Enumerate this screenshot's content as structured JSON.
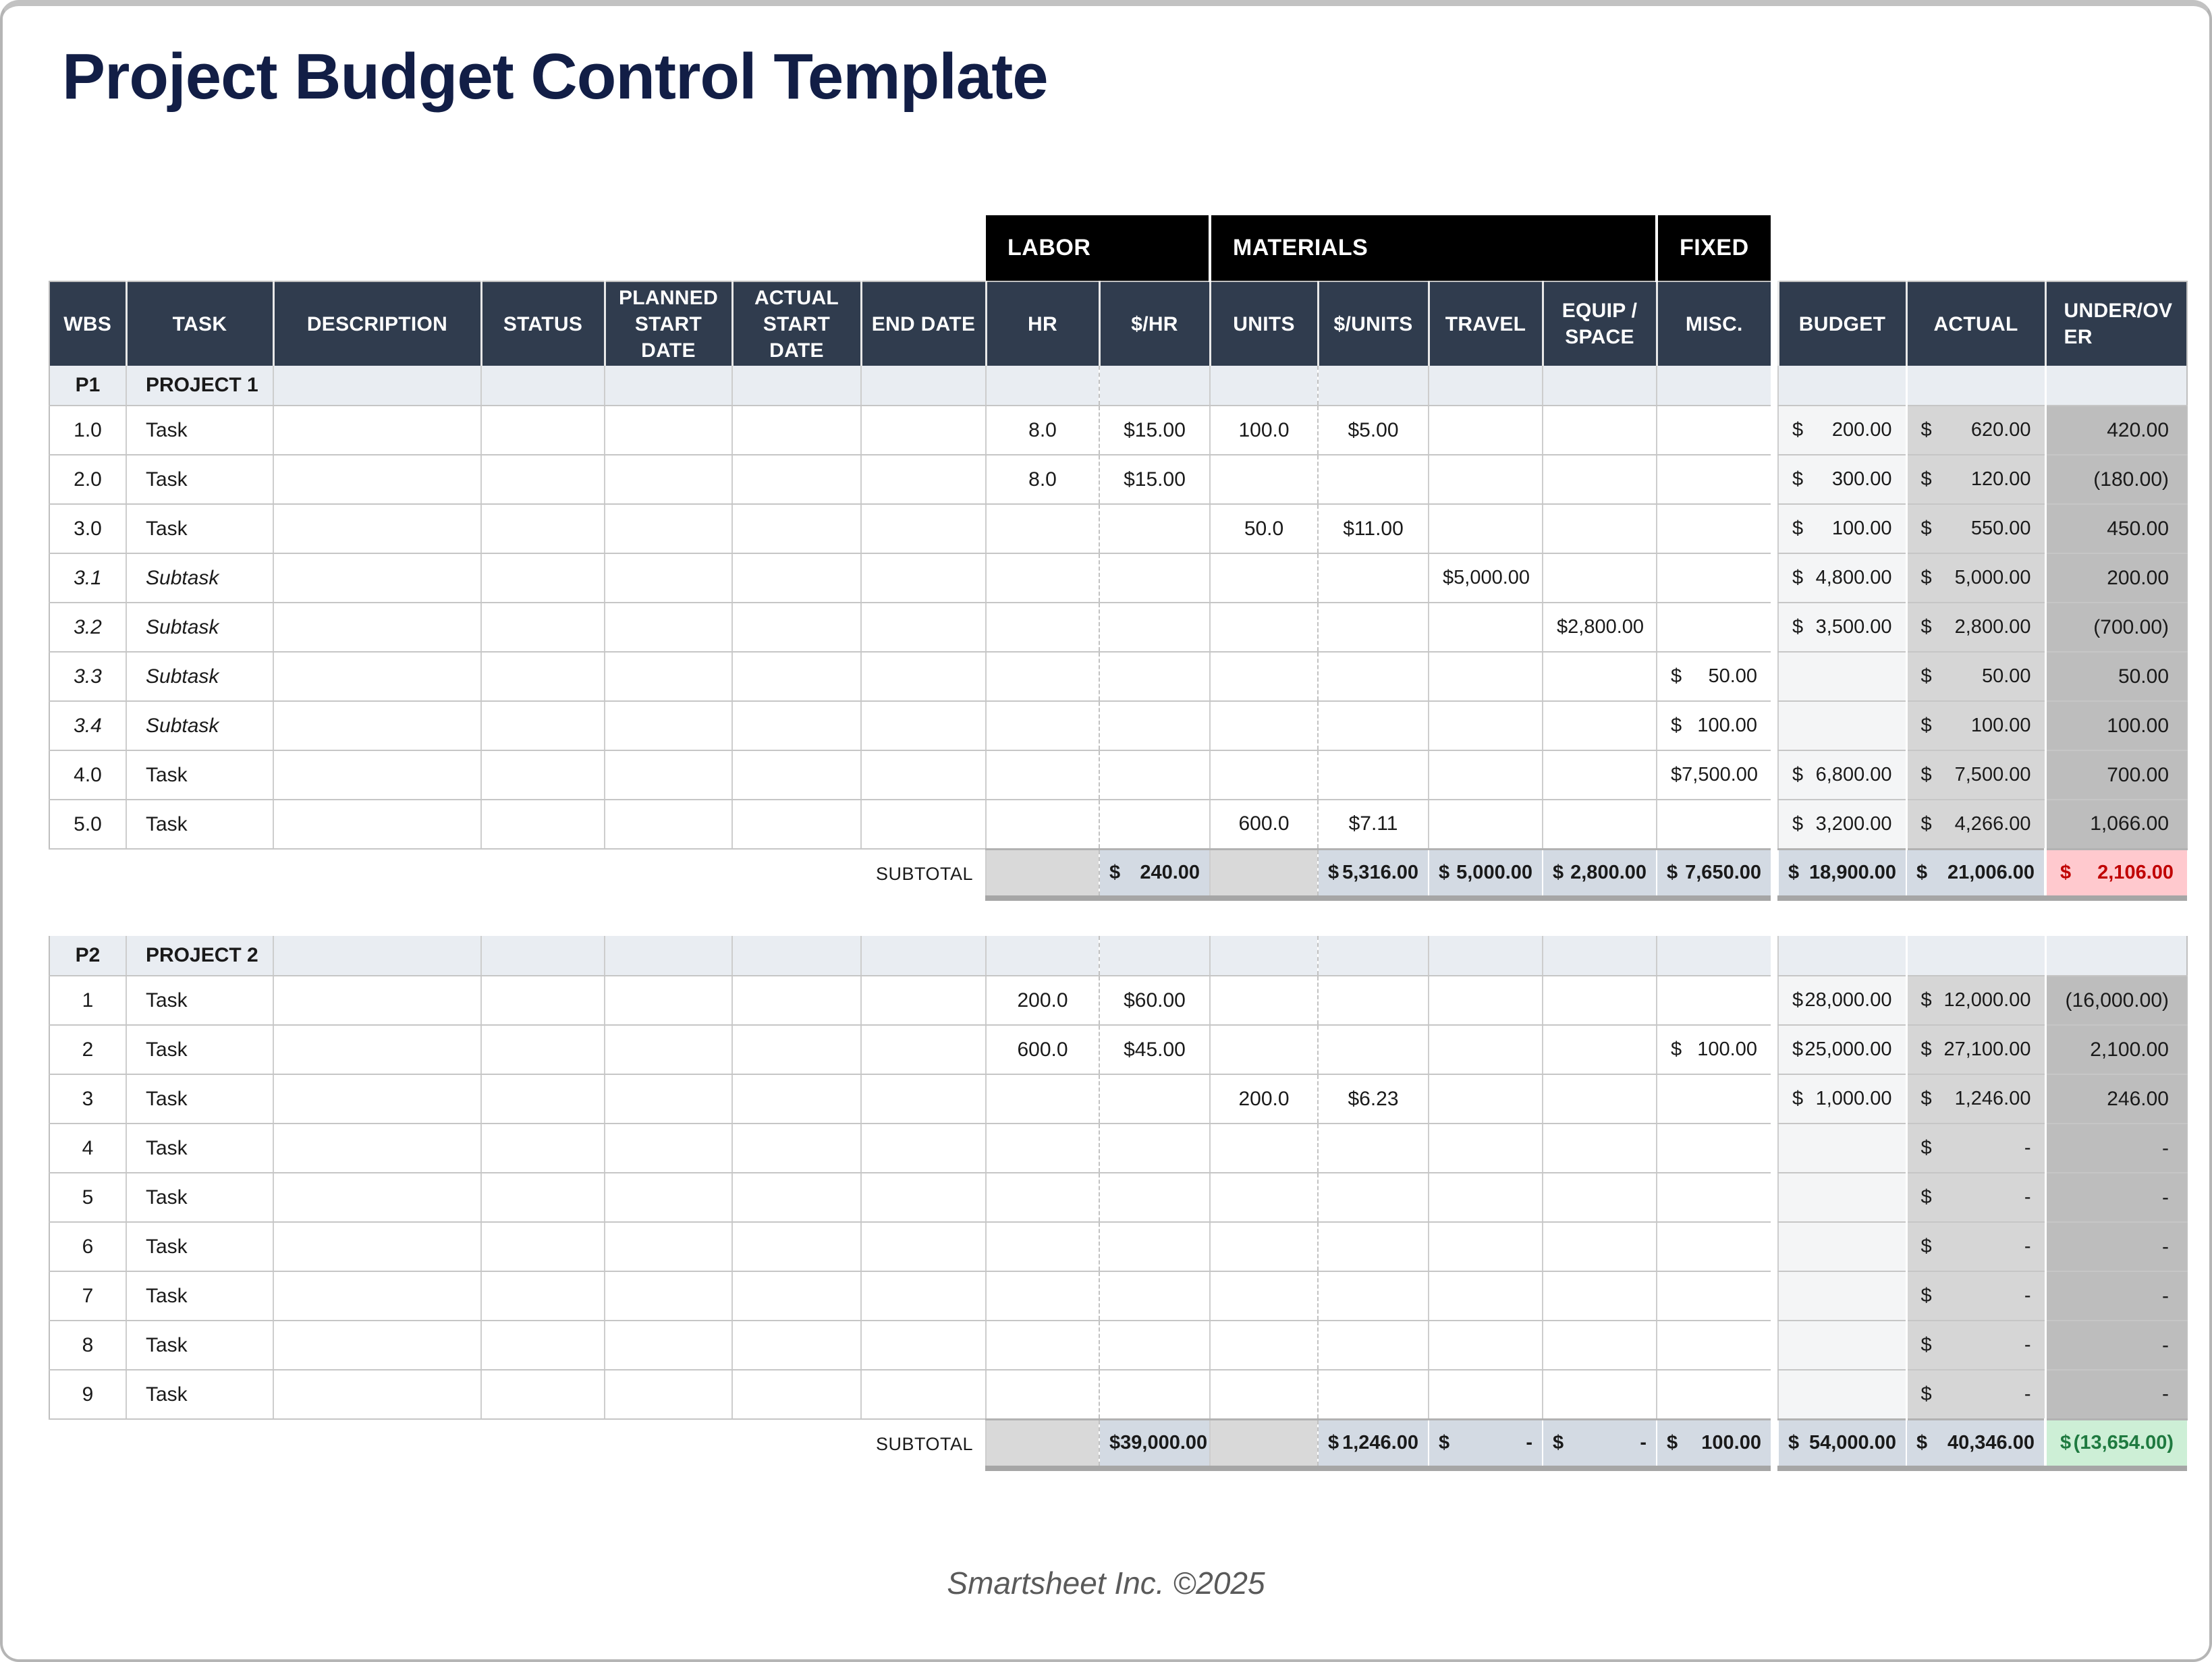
{
  "title": "Project Budget Control Template",
  "footer": "Smartsheet Inc. ©2025",
  "currency": "$",
  "colors": {
    "title_navy": "#121E46",
    "header_navy": "#303C4E",
    "group_black": "#000000",
    "project_row": "#E9EDF2",
    "subtotal_blue": "#D3DAE3",
    "subtotal_gray": "#D9D9D9",
    "budget_col": "#F4F5F6",
    "actual_col": "#D6D6D6",
    "variance_col": "#BDBDBD",
    "over_bg": "#FFC9CE",
    "over_text": "#C00000",
    "under_bg": "#CDEFD6",
    "under_text": "#1F7A40"
  },
  "table": {
    "group_headers": [
      {
        "label": "LABOR",
        "span": 2
      },
      {
        "label": "MATERIALS",
        "span": 4
      },
      {
        "label": "FIXED",
        "span": 1
      }
    ],
    "columns": [
      "WBS",
      "TASK",
      "DESCRIPTION",
      "STATUS",
      "PLANNED START DATE",
      "ACTUAL START DATE",
      "END DATE",
      "HR",
      "$/HR",
      "UNITS",
      "$/UNITS",
      "TRAVEL",
      "EQUIP / SPACE",
      "MISC.",
      "BUDGET",
      "ACTUAL",
      "UNDER/OVER"
    ],
    "subtotal_label": "SUBTOTAL",
    "projects": [
      {
        "id": "P1",
        "name": "PROJECT 1",
        "rows": [
          {
            "wbs": "1.0",
            "task": "Task",
            "sub": false,
            "hr": "8.0",
            "rate": "$15.00",
            "units": "100.0",
            "unit_cost": "$5.00",
            "travel": "",
            "equip": "",
            "misc": "",
            "budget": "200.00",
            "actual": "620.00",
            "variance": "420.00"
          },
          {
            "wbs": "2.0",
            "task": "Task",
            "sub": false,
            "hr": "8.0",
            "rate": "$15.00",
            "units": "",
            "unit_cost": "",
            "travel": "",
            "equip": "",
            "misc": "",
            "budget": "300.00",
            "actual": "120.00",
            "variance": "(180.00)"
          },
          {
            "wbs": "3.0",
            "task": "Task",
            "sub": false,
            "hr": "",
            "rate": "",
            "units": "50.0",
            "unit_cost": "$11.00",
            "travel": "",
            "equip": "",
            "misc": "",
            "budget": "100.00",
            "actual": "550.00",
            "variance": "450.00"
          },
          {
            "wbs": "3.1",
            "task": "Subtask",
            "sub": true,
            "hr": "",
            "rate": "",
            "units": "",
            "unit_cost": "",
            "travel": "5,000.00",
            "equip": "",
            "misc": "",
            "budget": "4,800.00",
            "actual": "5,000.00",
            "variance": "200.00"
          },
          {
            "wbs": "3.2",
            "task": "Subtask",
            "sub": true,
            "hr": "",
            "rate": "",
            "units": "",
            "unit_cost": "",
            "travel": "",
            "equip": "2,800.00",
            "misc": "",
            "budget": "3,500.00",
            "actual": "2,800.00",
            "variance": "(700.00)"
          },
          {
            "wbs": "3.3",
            "task": "Subtask",
            "sub": true,
            "hr": "",
            "rate": "",
            "units": "",
            "unit_cost": "",
            "travel": "",
            "equip": "",
            "misc": "50.00",
            "budget": "",
            "actual": "50.00",
            "variance": "50.00"
          },
          {
            "wbs": "3.4",
            "task": "Subtask",
            "sub": true,
            "hr": "",
            "rate": "",
            "units": "",
            "unit_cost": "",
            "travel": "",
            "equip": "",
            "misc": "100.00",
            "budget": "",
            "actual": "100.00",
            "variance": "100.00"
          },
          {
            "wbs": "4.0",
            "task": "Task",
            "sub": false,
            "hr": "",
            "rate": "",
            "units": "",
            "unit_cost": "",
            "travel": "",
            "equip": "",
            "misc": "7,500.00",
            "budget": "6,800.00",
            "actual": "7,500.00",
            "variance": "700.00"
          },
          {
            "wbs": "5.0",
            "task": "Task",
            "sub": false,
            "hr": "",
            "rate": "",
            "units": "600.0",
            "unit_cost": "$7.11",
            "travel": "",
            "equip": "",
            "misc": "",
            "budget": "3,200.00",
            "actual": "4,266.00",
            "variance": "1,066.00"
          }
        ],
        "subtotal": {
          "rate": "240.00",
          "unit_cost": "5,316.00",
          "travel": "5,000.00",
          "equip": "2,800.00",
          "misc": "7,650.00",
          "budget": "18,900.00",
          "actual": "21,006.00",
          "variance": "2,106.00",
          "variance_state": "over"
        }
      },
      {
        "id": "P2",
        "name": "PROJECT 2",
        "rows": [
          {
            "wbs": "1",
            "task": "Task",
            "sub": false,
            "hr": "200.0",
            "rate": "$60.00",
            "units": "",
            "unit_cost": "",
            "travel": "",
            "equip": "",
            "misc": "",
            "budget": "28,000.00",
            "actual": "12,000.00",
            "variance": "(16,000.00)"
          },
          {
            "wbs": "2",
            "task": "Task",
            "sub": false,
            "hr": "600.0",
            "rate": "$45.00",
            "units": "",
            "unit_cost": "",
            "travel": "",
            "equip": "",
            "misc": "100.00",
            "budget": "25,000.00",
            "actual": "27,100.00",
            "variance": "2,100.00"
          },
          {
            "wbs": "3",
            "task": "Task",
            "sub": false,
            "hr": "",
            "rate": "",
            "units": "200.0",
            "unit_cost": "$6.23",
            "travel": "",
            "equip": "",
            "misc": "",
            "budget": "1,000.00",
            "actual": "1,246.00",
            "variance": "246.00"
          },
          {
            "wbs": "4",
            "task": "Task",
            "sub": false,
            "hr": "",
            "rate": "",
            "units": "",
            "unit_cost": "",
            "travel": "",
            "equip": "",
            "misc": "",
            "budget": "",
            "actual": "-",
            "variance": "-"
          },
          {
            "wbs": "5",
            "task": "Task",
            "sub": false,
            "hr": "",
            "rate": "",
            "units": "",
            "unit_cost": "",
            "travel": "",
            "equip": "",
            "misc": "",
            "budget": "",
            "actual": "-",
            "variance": "-"
          },
          {
            "wbs": "6",
            "task": "Task",
            "sub": false,
            "hr": "",
            "rate": "",
            "units": "",
            "unit_cost": "",
            "travel": "",
            "equip": "",
            "misc": "",
            "budget": "",
            "actual": "-",
            "variance": "-"
          },
          {
            "wbs": "7",
            "task": "Task",
            "sub": false,
            "hr": "",
            "rate": "",
            "units": "",
            "unit_cost": "",
            "travel": "",
            "equip": "",
            "misc": "",
            "budget": "",
            "actual": "-",
            "variance": "-"
          },
          {
            "wbs": "8",
            "task": "Task",
            "sub": false,
            "hr": "",
            "rate": "",
            "units": "",
            "unit_cost": "",
            "travel": "",
            "equip": "",
            "misc": "",
            "budget": "",
            "actual": "-",
            "variance": "-"
          },
          {
            "wbs": "9",
            "task": "Task",
            "sub": false,
            "hr": "",
            "rate": "",
            "units": "",
            "unit_cost": "",
            "travel": "",
            "equip": "",
            "misc": "",
            "budget": "",
            "actual": "-",
            "variance": "-"
          }
        ],
        "subtotal": {
          "rate": "39,000.00",
          "unit_cost": "1,246.00",
          "travel": "-",
          "equip": "-",
          "misc": "100.00",
          "budget": "54,000.00",
          "actual": "40,346.00",
          "variance": "(13,654.00)",
          "variance_state": "under"
        }
      }
    ]
  }
}
